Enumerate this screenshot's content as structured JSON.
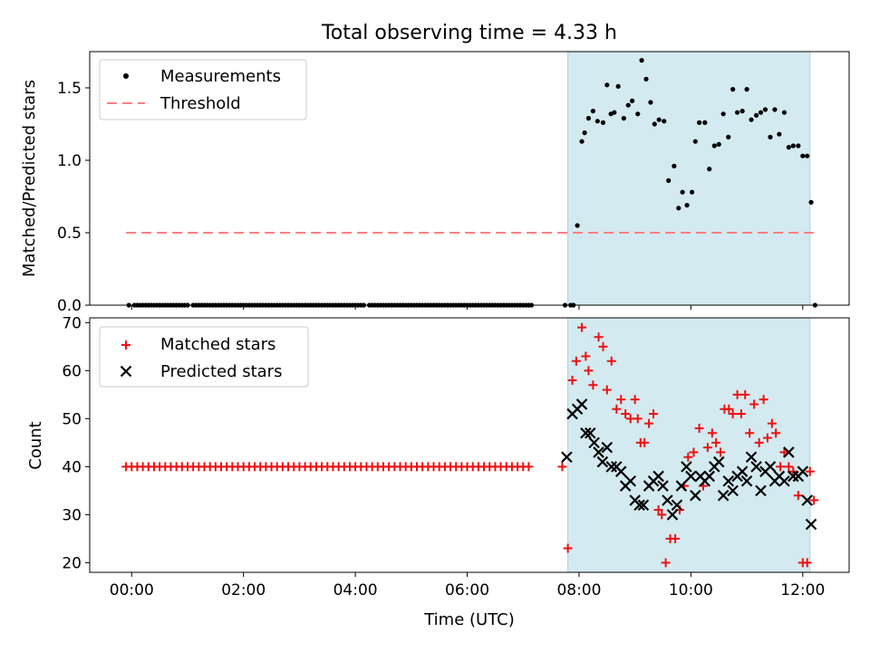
{
  "figure": {
    "title": "Total observing time = 4.33 h",
    "xlabel": "Time (UTC)",
    "xticks": [
      "00:00",
      "02:00",
      "04:00",
      "06:00",
      "08:00",
      "10:00",
      "12:00"
    ]
  },
  "colors": {
    "span": "#d3eaf0",
    "span_edge": "#a9d3df",
    "threshold": "#ff7f7f",
    "matched": "#ee1111",
    "predicted": "#000000",
    "measurements": "#000000"
  },
  "chart_data": [
    {
      "type": "scatter",
      "id": "ratio",
      "ylabel": "Matched/Predicted stars",
      "ylim": [
        0,
        1.75
      ],
      "yticks": [
        "0.0",
        "0.5",
        "1.0",
        "1.5"
      ],
      "xlim_hours": [
        -0.75,
        12.83
      ],
      "observing_span_hours": [
        7.8,
        12.13
      ],
      "legend": {
        "placement": "top-left",
        "entries": [
          "Measurements",
          "Threshold"
        ]
      },
      "threshold": {
        "name": "Threshold",
        "value": 0.5,
        "x_range_hours": [
          -0.1,
          12.2
        ]
      },
      "series": [
        {
          "name": "Measurements",
          "x_hours": [
            -0.05,
            0.05,
            0.1,
            0.15,
            0.2,
            0.25,
            0.3,
            0.35,
            0.4,
            0.45,
            0.5,
            0.55,
            0.6,
            0.65,
            0.7,
            0.75,
            0.8,
            0.85,
            0.9,
            0.95,
            1.0,
            1.1,
            1.15,
            1.2,
            1.25,
            1.3,
            1.35,
            1.4,
            1.45,
            1.5,
            1.55,
            1.6,
            1.65,
            1.7,
            1.75,
            1.8,
            1.85,
            1.9,
            1.95,
            2.0,
            2.05,
            2.1,
            2.15,
            2.2,
            2.25,
            2.3,
            2.35,
            2.4,
            2.45,
            2.5,
            2.55,
            2.6,
            2.65,
            2.7,
            2.75,
            2.8,
            2.85,
            2.9,
            2.95,
            3.0,
            3.05,
            3.1,
            3.15,
            3.2,
            3.25,
            3.3,
            3.35,
            3.4,
            3.45,
            3.5,
            3.55,
            3.6,
            3.65,
            3.7,
            3.75,
            3.8,
            3.85,
            3.9,
            3.95,
            4.0,
            4.05,
            4.1,
            4.15,
            4.25,
            4.3,
            4.35,
            4.4,
            4.45,
            4.5,
            4.55,
            4.6,
            4.65,
            4.7,
            4.75,
            4.8,
            4.85,
            4.9,
            4.95,
            5.0,
            5.05,
            5.1,
            5.15,
            5.2,
            5.25,
            5.3,
            5.35,
            5.4,
            5.45,
            5.5,
            5.55,
            5.6,
            5.65,
            5.7,
            5.75,
            5.8,
            5.85,
            5.9,
            5.95,
            6.0,
            6.05,
            6.1,
            6.15,
            6.2,
            6.25,
            6.3,
            6.35,
            6.4,
            6.45,
            6.5,
            6.55,
            6.6,
            6.65,
            6.7,
            6.75,
            6.8,
            6.85,
            6.9,
            6.95,
            7.0,
            7.05,
            7.1,
            7.15,
            7.75,
            7.85,
            7.9,
            7.97,
            8.05,
            8.1,
            8.17,
            8.25,
            8.33,
            8.43,
            8.5,
            8.57,
            8.63,
            8.7,
            8.8,
            8.88,
            8.95,
            9.05,
            9.12,
            9.2,
            9.28,
            9.35,
            9.43,
            9.52,
            9.6,
            9.7,
            9.78,
            9.85,
            9.93,
            10.02,
            10.08,
            10.15,
            10.25,
            10.33,
            10.42,
            10.5,
            10.58,
            10.67,
            10.75,
            10.83,
            10.92,
            11.0,
            11.08,
            11.17,
            11.25,
            11.33,
            11.42,
            11.5,
            11.58,
            11.67,
            11.75,
            11.83,
            11.92,
            12.0,
            12.08,
            12.15,
            12.22
          ],
          "y": [
            0,
            0,
            0,
            0,
            0,
            0,
            0,
            0,
            0,
            0,
            0,
            0,
            0,
            0,
            0,
            0,
            0,
            0,
            0,
            0,
            0,
            0,
            0,
            0,
            0,
            0,
            0,
            0,
            0,
            0,
            0,
            0,
            0,
            0,
            0,
            0,
            0,
            0,
            0,
            0,
            0,
            0,
            0,
            0,
            0,
            0,
            0,
            0,
            0,
            0,
            0,
            0,
            0,
            0,
            0,
            0,
            0,
            0,
            0,
            0,
            0,
            0,
            0,
            0,
            0,
            0,
            0,
            0,
            0,
            0,
            0,
            0,
            0,
            0,
            0,
            0,
            0,
            0,
            0,
            0,
            0,
            0,
            0,
            0,
            0,
            0,
            0,
            0,
            0,
            0,
            0,
            0,
            0,
            0,
            0,
            0,
            0,
            0,
            0,
            0,
            0,
            0,
            0,
            0,
            0,
            0,
            0,
            0,
            0,
            0,
            0,
            0,
            0,
            0,
            0,
            0,
            0,
            0,
            0,
            0,
            0,
            0,
            0,
            0,
            0,
            0,
            0,
            0,
            0,
            0,
            0,
            0,
            0,
            0,
            0,
            0,
            0,
            0,
            0,
            0,
            0,
            0,
            0,
            0,
            0,
            0.55,
            1.13,
            1.19,
            1.29,
            1.34,
            1.27,
            1.26,
            1.52,
            1.32,
            1.33,
            1.51,
            1.29,
            1.38,
            1.41,
            1.32,
            1.69,
            1.56,
            1.4,
            1.25,
            1.28,
            1.27,
            0.86,
            0.96,
            0.67,
            0.78,
            0.69,
            0.78,
            1.13,
            1.26,
            1.26,
            0.94,
            1.1,
            1.11,
            1.32,
            1.16,
            1.49,
            1.33,
            1.34,
            1.49,
            1.28,
            1.31,
            1.33,
            1.35,
            1.16,
            1.35,
            1.18,
            1.33,
            1.09,
            1.1,
            1.1,
            1.03,
            1.03,
            0.71,
            0
          ]
        }
      ]
    },
    {
      "type": "scatter",
      "id": "counts",
      "ylabel": "Count",
      "ylim": [
        18,
        71
      ],
      "yticks": [
        "20",
        "30",
        "40",
        "50",
        "60",
        "70"
      ],
      "xlim_hours": [
        -0.75,
        12.83
      ],
      "observing_span_hours": [
        7.8,
        12.13
      ],
      "legend": {
        "placement": "top-left",
        "entries": [
          "Matched stars",
          "Predicted stars"
        ]
      },
      "baseline_segment": {
        "from_hours": -0.1,
        "to_hours": 7.15,
        "step_hours": 0.1,
        "value": 40
      },
      "series": [
        {
          "name": "Matched stars",
          "x_hours": [
            7.7,
            7.8,
            7.88,
            7.95,
            8.05,
            8.12,
            8.17,
            8.25,
            8.35,
            8.43,
            8.5,
            8.58,
            8.67,
            8.75,
            8.83,
            8.92,
            9.0,
            9.05,
            9.1,
            9.17,
            9.25,
            9.33,
            9.42,
            9.48,
            9.55,
            9.63,
            9.72,
            9.8,
            9.88,
            9.95,
            10.05,
            10.15,
            10.22,
            10.3,
            10.38,
            10.45,
            10.53,
            10.6,
            10.68,
            10.75,
            10.83,
            10.9,
            10.97,
            11.05,
            11.13,
            11.22,
            11.3,
            11.37,
            11.45,
            11.52,
            11.6,
            11.67,
            11.75,
            11.83,
            11.92,
            12.0,
            12.08,
            12.13,
            12.2
          ],
          "y": [
            40,
            23,
            58,
            62,
            69,
            63,
            60,
            57,
            67,
            65,
            56,
            62,
            52,
            54,
            51,
            50,
            54,
            50,
            45,
            45,
            49,
            51,
            31,
            30,
            20,
            25,
            25,
            31,
            36,
            42,
            43,
            48,
            36,
            44,
            47,
            45,
            43,
            52,
            52,
            51,
            55,
            51,
            55,
            47,
            53,
            45,
            54,
            46,
            49,
            47,
            40,
            43,
            40,
            39,
            34,
            20,
            20,
            39,
            33
          ]
        },
        {
          "name": "Predicted stars",
          "x_hours": [
            7.78,
            7.88,
            7.97,
            8.05,
            8.12,
            8.2,
            8.27,
            8.35,
            8.42,
            8.5,
            8.58,
            8.67,
            8.75,
            8.83,
            8.92,
            9.0,
            9.08,
            9.15,
            9.25,
            9.33,
            9.42,
            9.5,
            9.58,
            9.67,
            9.75,
            9.83,
            9.92,
            10.0,
            10.08,
            10.17,
            10.25,
            10.33,
            10.42,
            10.5,
            10.58,
            10.67,
            10.75,
            10.83,
            10.92,
            11.0,
            11.08,
            11.17,
            11.25,
            11.33,
            11.42,
            11.5,
            11.58,
            11.67,
            11.75,
            11.83,
            11.92,
            12.0,
            12.08,
            12.15
          ],
          "y": [
            42,
            51,
            52,
            53,
            47,
            47,
            45,
            43,
            41,
            44,
            40,
            40,
            39,
            36,
            37,
            33,
            32,
            32,
            36,
            37,
            38,
            36,
            33,
            30,
            32,
            36,
            40,
            38,
            34,
            38,
            37,
            38,
            40,
            41,
            34,
            37,
            35,
            38,
            39,
            37,
            42,
            40,
            35,
            39,
            40,
            37,
            38,
            37,
            43,
            38,
            38,
            39,
            33,
            28
          ]
        }
      ]
    }
  ]
}
